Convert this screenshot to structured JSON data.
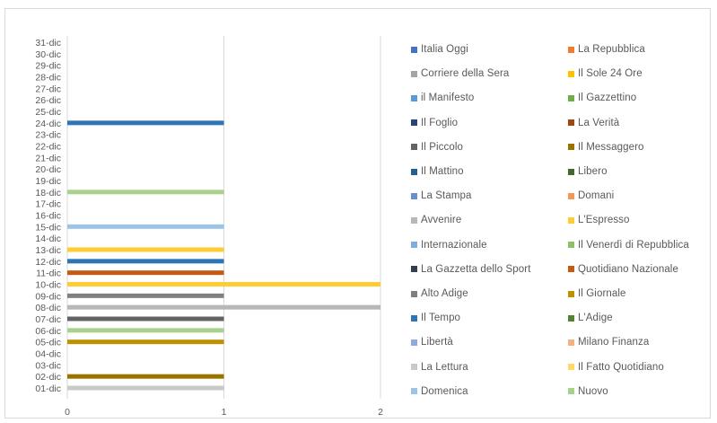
{
  "chart_data": {
    "type": "bar",
    "orientation": "horizontal",
    "categories": [
      "01-dic",
      "02-dic",
      "03-dic",
      "04-dic",
      "05-dic",
      "06-dic",
      "07-dic",
      "08-dic",
      "09-dic",
      "10-dic",
      "11-dic",
      "12-dic",
      "13-dic",
      "14-dic",
      "15-dic",
      "16-dic",
      "17-dic",
      "18-dic",
      "19-dic",
      "20-dic",
      "21-dic",
      "22-dic",
      "23-dic",
      "24-dic",
      "25-dic",
      "26-dic",
      "27-dic",
      "28-dic",
      "29-dic",
      "30-dic",
      "31-dic"
    ],
    "x_ticks": [
      "0",
      "1",
      "2"
    ],
    "xlim": [
      0,
      2
    ],
    "grid": "vertical",
    "legend_position": "right",
    "series": [
      {
        "name": "Italia Oggi",
        "color": "#4472c4",
        "values": {}
      },
      {
        "name": "La Repubblica",
        "color": "#ed7d31",
        "values": {}
      },
      {
        "name": "Corriere della Sera",
        "color": "#a5a5a5",
        "values": {}
      },
      {
        "name": "Il Sole 24 Ore",
        "color": "#ffc000",
        "values": {}
      },
      {
        "name": "il Manifesto",
        "color": "#5b9bd5",
        "values": {}
      },
      {
        "name": "Il Gazzettino",
        "color": "#70ad47",
        "values": {}
      },
      {
        "name": "Il Foglio",
        "color": "#264478",
        "values": {}
      },
      {
        "name": "La Verità",
        "color": "#9e480e",
        "values": {}
      },
      {
        "name": "Il Piccolo",
        "color": "#636363",
        "values": {
          "07-dic": 1
        }
      },
      {
        "name": "Il Messaggero",
        "color": "#997300",
        "values": {
          "02-dic": 1
        }
      },
      {
        "name": "Il Mattino",
        "color": "#255e91",
        "values": {}
      },
      {
        "name": "Libero",
        "color": "#43682b",
        "values": {}
      },
      {
        "name": "La Stampa",
        "color": "#698ed0",
        "values": {}
      },
      {
        "name": "Domani",
        "color": "#f1975a",
        "values": {}
      },
      {
        "name": "Avvenire",
        "color": "#b7b7b7",
        "values": {
          "08-dic": 2
        }
      },
      {
        "name": "L'Espresso",
        "color": "#ffcd33",
        "values": {
          "10-dic": 2,
          "13-dic": 1
        }
      },
      {
        "name": "Internazionale",
        "color": "#7cafdd",
        "values": {}
      },
      {
        "name": "Il Venerdì di Repubblica",
        "color": "#8cc168",
        "values": {}
      },
      {
        "name": "La Gazzetta dello Sport",
        "color": "#333f50",
        "values": {}
      },
      {
        "name": "Quotidiano Nazionale",
        "color": "#c55a11",
        "values": {
          "11-dic": 1
        }
      },
      {
        "name": "Alto Adige",
        "color": "#7f7f7f",
        "values": {
          "09-dic": 1
        }
      },
      {
        "name": "Il Giornale",
        "color": "#bf9000",
        "values": {
          "05-dic": 1
        }
      },
      {
        "name": "Il Tempo",
        "color": "#2e75b6",
        "values": {
          "12-dic": 1,
          "24-dic": 1
        }
      },
      {
        "name": "L'Adige",
        "color": "#548235",
        "values": {}
      },
      {
        "name": "Libertà",
        "color": "#8faadc",
        "values": {}
      },
      {
        "name": "Milano Finanza",
        "color": "#f4b183",
        "values": {}
      },
      {
        "name": "La Lettura",
        "color": "#c9c9c9",
        "values": {
          "01-dic": 1
        }
      },
      {
        "name": "Il Fatto Quotidiano",
        "color": "#ffd966",
        "values": {}
      },
      {
        "name": "Domenica",
        "color": "#9dc3e6",
        "values": {
          "15-dic": 1
        }
      },
      {
        "name": "Nuovo",
        "color": "#a9d18e",
        "values": {
          "06-dic": 1,
          "18-dic": 1
        }
      }
    ]
  }
}
